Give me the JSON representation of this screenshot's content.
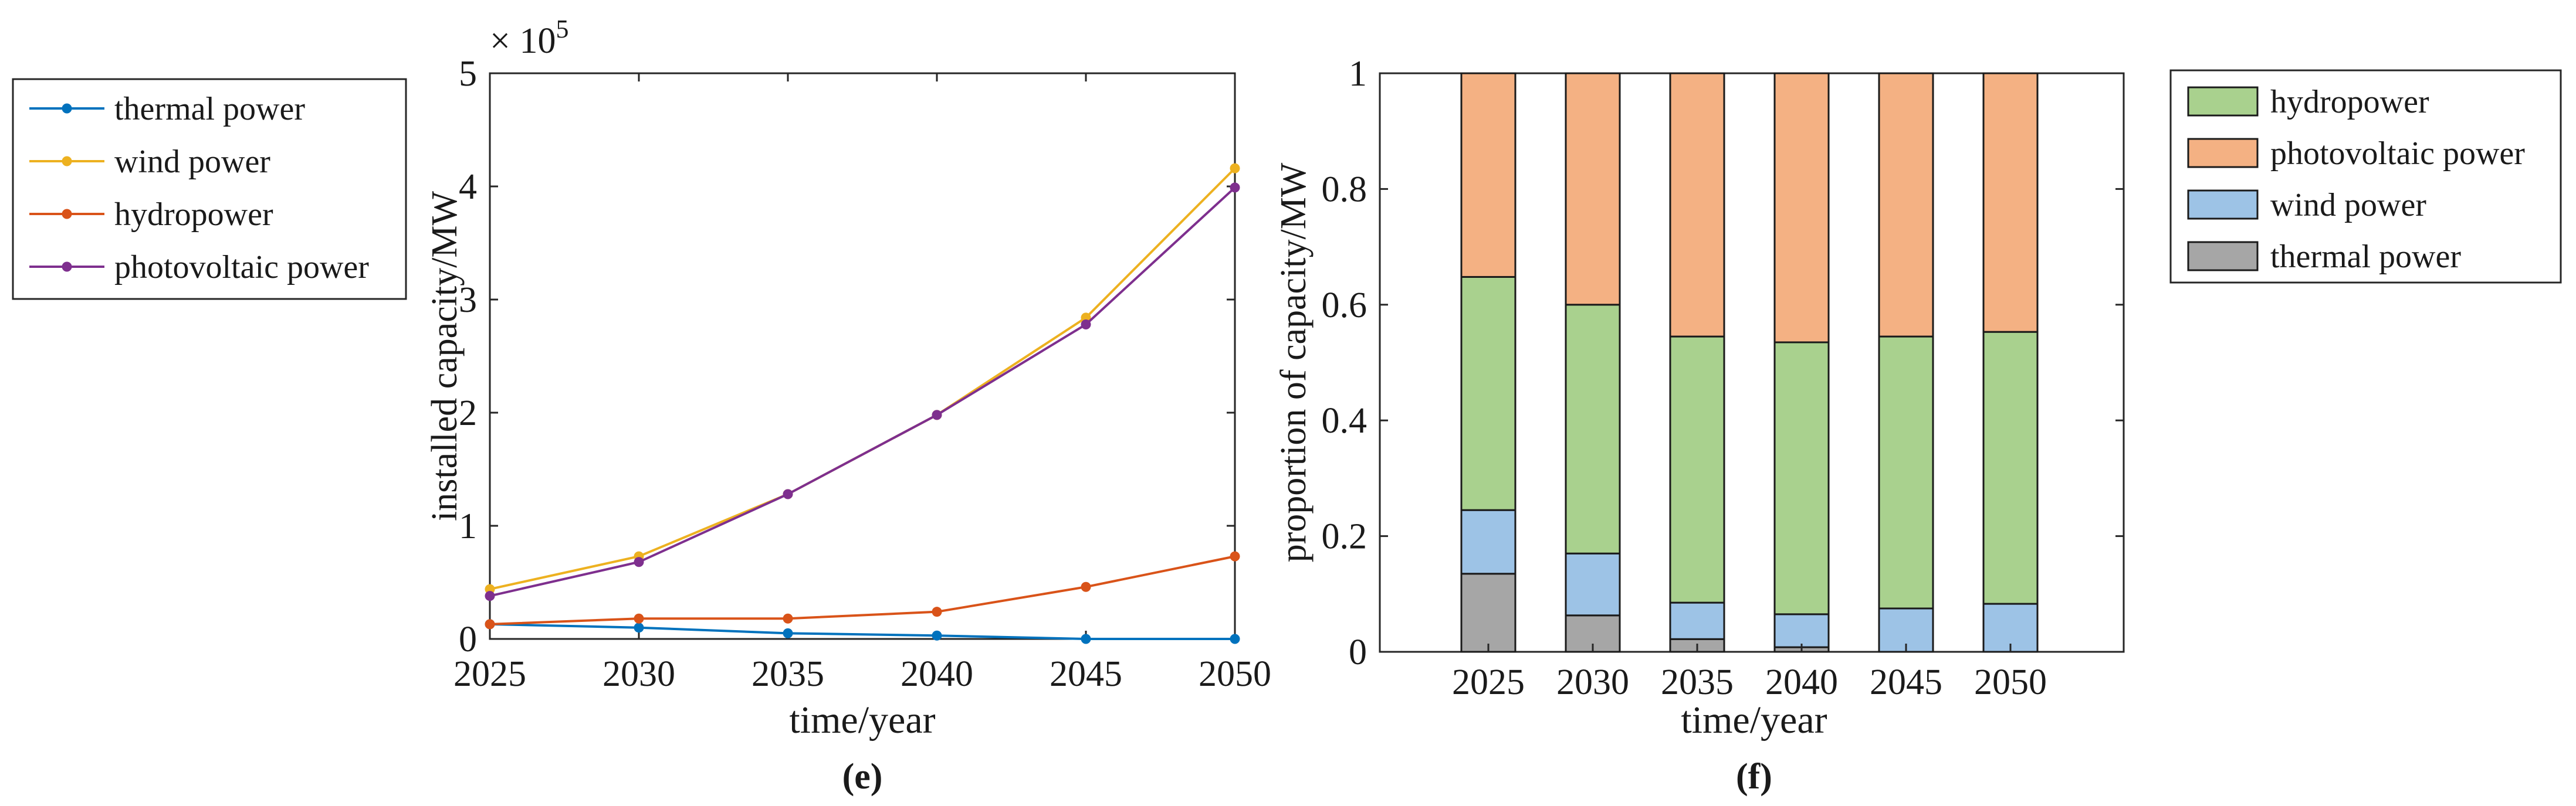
{
  "figure": {
    "panel_labels": [
      "(e)",
      "(f)"
    ]
  },
  "chart_data": [
    {
      "type": "line",
      "panel": "(e)",
      "title": "",
      "xlabel": "time/year",
      "ylabel": "installed capacity/MW",
      "y_exponent_label": "× 10",
      "y_exponent": "5",
      "x": [
        2025,
        2030,
        2035,
        2040,
        2045,
        2050
      ],
      "xlim": [
        2025,
        2050
      ],
      "ylim": [
        0,
        5
      ],
      "x_ticks": [
        "2025",
        "2030",
        "2035",
        "2040",
        "2045",
        "2050"
      ],
      "y_ticks": [
        "0",
        "1",
        "2",
        "3",
        "4",
        "5"
      ],
      "series": [
        {
          "name": "thermal power",
          "color": "#0072BD",
          "values": [
            0.13,
            0.1,
            0.05,
            0.03,
            0.0,
            0.0
          ]
        },
        {
          "name": "wind power",
          "color": "#EDB120",
          "values": [
            0.44,
            0.73,
            1.28,
            1.98,
            2.84,
            4.16
          ]
        },
        {
          "name": "hydropower",
          "color": "#D95319",
          "values": [
            0.13,
            0.18,
            0.18,
            0.24,
            0.46,
            0.73
          ]
        },
        {
          "name": "photovoltaic power",
          "color": "#7E2F8E",
          "values": [
            0.38,
            0.68,
            1.28,
            1.98,
            2.78,
            3.99
          ]
        }
      ],
      "legend_placement": "outside-left"
    },
    {
      "type": "bar",
      "stacked": true,
      "panel": "(f)",
      "title": "",
      "xlabel": "time/year",
      "ylabel": "proportion of capacity/MW",
      "categories": [
        "2025",
        "2030",
        "2035",
        "2040",
        "2045",
        "2050"
      ],
      "ylim": [
        0,
        1
      ],
      "y_ticks": [
        "0",
        "0.2",
        "0.4",
        "0.6",
        "0.8",
        "1"
      ],
      "series": [
        {
          "name": "thermal power",
          "color": "#A6A6A6",
          "values": [
            0.135,
            0.063,
            0.022,
            0.008,
            0.0,
            0.0
          ]
        },
        {
          "name": "wind power",
          "color": "#9DC3E6",
          "values": [
            0.11,
            0.107,
            0.063,
            0.057,
            0.075,
            0.083
          ]
        },
        {
          "name": "hydropower",
          "color": "#A9D18E",
          "values": [
            0.403,
            0.43,
            0.46,
            0.47,
            0.47,
            0.47
          ]
        },
        {
          "name": "photovoltaic power",
          "color": "#F4B183",
          "values": [
            0.352,
            0.4,
            0.455,
            0.465,
            0.455,
            0.447
          ]
        }
      ],
      "legend_order": [
        "hydropower",
        "photovoltaic power",
        "wind power",
        "thermal power"
      ],
      "legend_placement": "outside-right"
    }
  ]
}
